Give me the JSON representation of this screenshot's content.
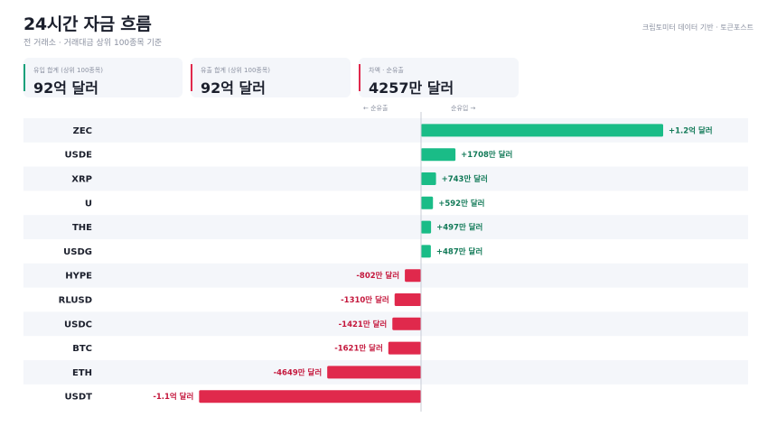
{
  "header": {
    "title": "24시간 자금 흐름",
    "subtitle": "전 거래소 · 거래대금 상위 100종목 기준",
    "source": "크립토미터 데이터 기반 · 토큰포스트"
  },
  "cards": [
    {
      "label": "유입 합계 (상위 100종목)",
      "value": "92억 달러",
      "accent": "#16a07a"
    },
    {
      "label": "유출 합계 (상위 100종목)",
      "value": "92억 달러",
      "accent": "#e0294c"
    },
    {
      "label": "차액 · 순유출",
      "value": "4257만 달러",
      "accent": "#e0294c"
    }
  ],
  "direction": {
    "outflow": "← 순유출",
    "inflow": "순유입 →"
  },
  "colors": {
    "positive": "#1abc87",
    "negative": "#e0294c",
    "positive_text": "#127a58",
    "negative_text": "#c4173c",
    "row_band": "#f4f6fa"
  },
  "chart_data": {
    "type": "bar",
    "orientation": "horizontal",
    "unit": "만 달러",
    "categories": [
      "ZEC",
      "USDE",
      "XRP",
      "U",
      "THE",
      "USDG",
      "HYPE",
      "RLUSD",
      "USDC",
      "BTC",
      "ETH",
      "USDT"
    ],
    "values": [
      12000,
      1708,
      743,
      592,
      497,
      487,
      -802,
      -1310,
      -1421,
      -1621,
      -4649,
      -11000
    ],
    "labels": [
      "+1.2억 달러",
      "+1708만 달러",
      "+743만 달러",
      "+592만 달러",
      "+497만 달러",
      "+487만 달러",
      "-802만 달러",
      "-1310만 달러",
      "-1421만 달러",
      "-1621만 달러",
      "-4649만 달러",
      "-1.1억 달러"
    ]
  }
}
